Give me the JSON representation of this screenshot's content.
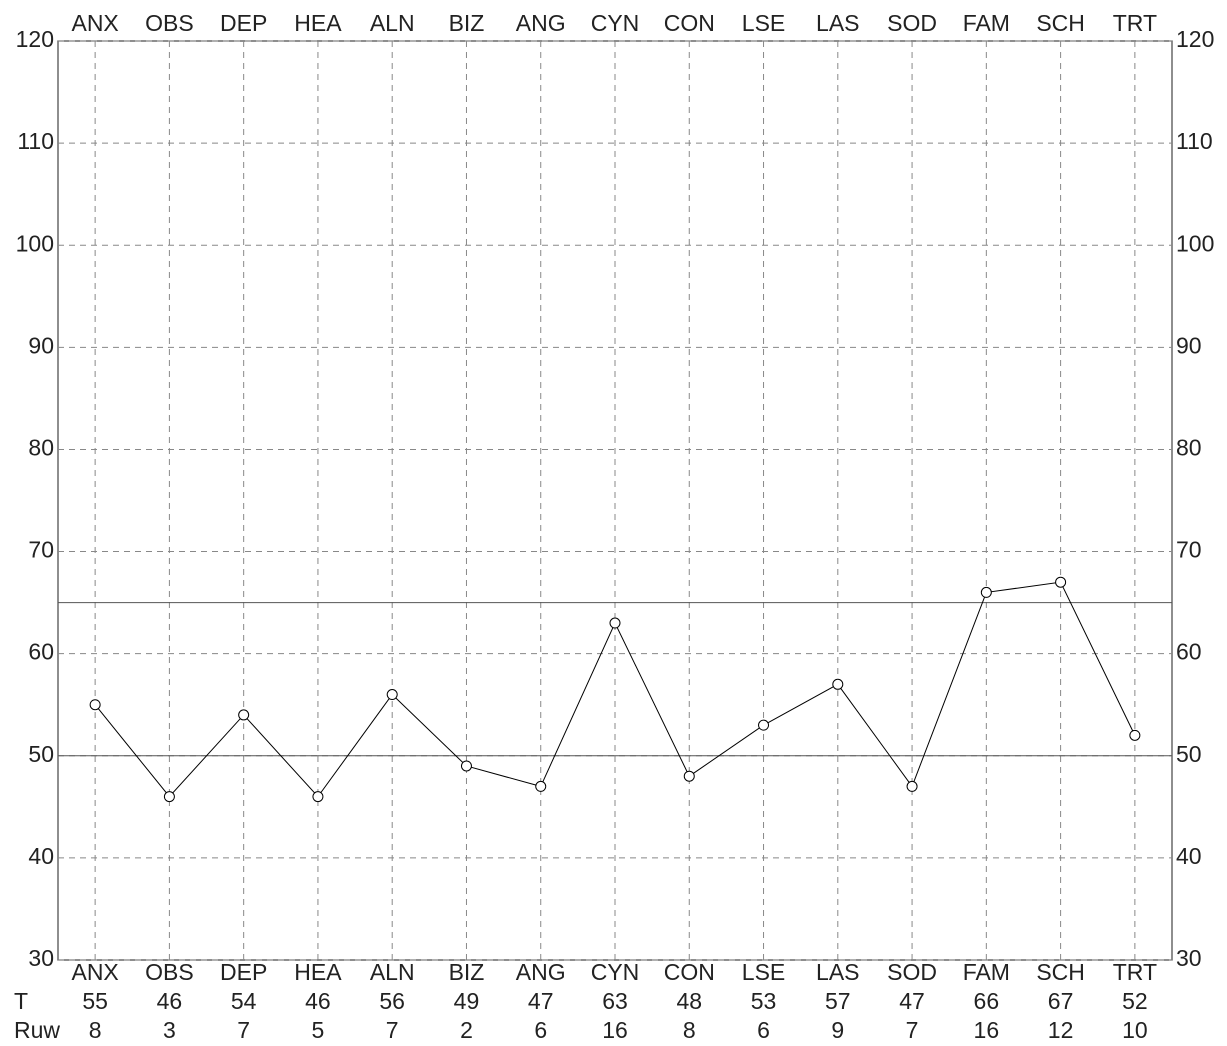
{
  "chart_data": {
    "type": "line",
    "categories": [
      "ANX",
      "OBS",
      "DEP",
      "HEA",
      "ALN",
      "BIZ",
      "ANG",
      "CYN",
      "CON",
      "LSE",
      "LAS",
      "SOD",
      "FAM",
      "SCH",
      "TRT"
    ],
    "series": [
      {
        "name": "T",
        "color": "#000000",
        "values": [
          55,
          46,
          54,
          46,
          56,
          49,
          47,
          63,
          48,
          53,
          57,
          47,
          66,
          67,
          52
        ]
      }
    ],
    "raw_scores": {
      "label": "Ruw",
      "values": [
        8,
        3,
        7,
        5,
        7,
        2,
        6,
        16,
        8,
        6,
        9,
        7,
        16,
        12,
        10
      ]
    },
    "ylim": [
      30,
      120
    ],
    "yticks": [
      30,
      40,
      50,
      60,
      70,
      80,
      90,
      100,
      110,
      120
    ],
    "reference_lines": [
      50,
      65
    ],
    "grid": true
  }
}
